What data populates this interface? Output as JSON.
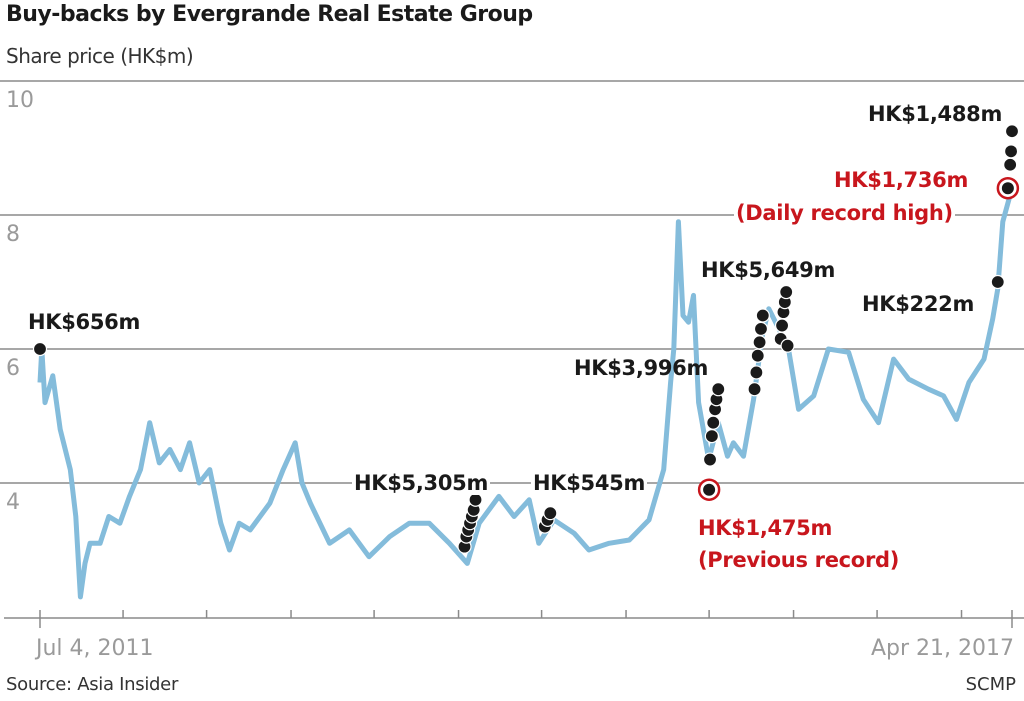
{
  "title": "Buy-backs by Evergrande Real Estate Group",
  "subtitle": "Share price (HK$m)",
  "source": "Source: Asia Insider",
  "credit": "SCMP",
  "colors": {
    "line": "#84bcdb",
    "dot": "#1a1a1a",
    "highlight": "#c8161d",
    "grid": "#8a8a8a",
    "tick_text": "#9a9a9a"
  },
  "chart_data": {
    "type": "line",
    "title": "Buy-backs by Evergrande Real Estate Group",
    "ylabel": "Share price (HK$m)",
    "xlabel": "",
    "ylim": [
      2,
      10
    ],
    "yticks": [
      4,
      6,
      8,
      10
    ],
    "xlim": [
      "2011-07-04",
      "2017-04-21"
    ],
    "x_tick_labels": [
      "Jul 4, 2011",
      "Apr 21, 2017"
    ],
    "x_ticks": [
      "2011-07-04",
      "2012-01-01",
      "2012-07-01",
      "2013-01-01",
      "2013-07-01",
      "2014-01-01",
      "2014-07-01",
      "2015-01-01",
      "2015-07-01",
      "2016-01-01",
      "2016-07-01",
      "2017-01-01",
      "2017-04-21"
    ],
    "grid": true,
    "series": [
      {
        "values": [
          [
            "2011-07-04",
            5.5
          ],
          [
            "2011-07-08",
            6.0
          ],
          [
            "2011-07-15",
            5.2
          ],
          [
            "2011-08-01",
            5.6
          ],
          [
            "2011-08-17",
            4.8
          ],
          [
            "2011-09-08",
            4.2
          ],
          [
            "2011-09-20",
            3.5
          ],
          [
            "2011-09-30",
            2.3
          ],
          [
            "2011-10-10",
            2.8
          ],
          [
            "2011-10-21",
            3.1
          ],
          [
            "2011-11-12",
            3.1
          ],
          [
            "2011-12-01",
            3.5
          ],
          [
            "2011-12-25",
            3.4
          ],
          [
            "2012-01-15",
            3.8
          ],
          [
            "2012-02-08",
            4.2
          ],
          [
            "2012-02-28",
            4.9
          ],
          [
            "2012-03-20",
            4.3
          ],
          [
            "2012-04-12",
            4.5
          ],
          [
            "2012-05-05",
            4.2
          ],
          [
            "2012-05-25",
            4.6
          ],
          [
            "2012-06-15",
            4.0
          ],
          [
            "2012-07-08",
            4.2
          ],
          [
            "2012-08-01",
            3.4
          ],
          [
            "2012-08-20",
            3.0
          ],
          [
            "2012-09-10",
            3.4
          ],
          [
            "2012-10-04",
            3.3
          ],
          [
            "2012-11-16",
            3.7
          ],
          [
            "2012-12-15",
            4.2
          ],
          [
            "2013-01-10",
            4.6
          ],
          [
            "2013-01-25",
            4.0
          ],
          [
            "2013-02-12",
            3.7
          ],
          [
            "2013-03-26",
            3.1
          ],
          [
            "2013-05-08",
            3.3
          ],
          [
            "2013-06-20",
            2.9
          ],
          [
            "2013-08-04",
            3.2
          ],
          [
            "2013-09-16",
            3.4
          ],
          [
            "2013-10-29",
            3.4
          ],
          [
            "2013-12-12",
            3.1
          ],
          [
            "2014-01-20",
            2.8
          ],
          [
            "2014-02-15",
            3.4
          ],
          [
            "2014-03-30",
            3.8
          ],
          [
            "2014-05-02",
            3.5
          ],
          [
            "2014-06-04",
            3.75
          ],
          [
            "2014-06-25",
            3.1
          ],
          [
            "2014-07-28",
            3.45
          ],
          [
            "2014-09-10",
            3.25
          ],
          [
            "2014-10-12",
            3.0
          ],
          [
            "2014-11-25",
            3.1
          ],
          [
            "2015-01-08",
            3.15
          ],
          [
            "2015-02-20",
            3.45
          ],
          [
            "2015-03-24",
            4.2
          ],
          [
            "2015-04-08",
            5.5
          ],
          [
            "2015-04-15",
            6.0
          ],
          [
            "2015-04-25",
            7.9
          ],
          [
            "2015-05-05",
            6.5
          ],
          [
            "2015-05-17",
            6.4
          ],
          [
            "2015-05-28",
            6.8
          ],
          [
            "2015-06-08",
            5.2
          ],
          [
            "2015-06-30",
            4.35
          ],
          [
            "2015-07-21",
            4.9
          ],
          [
            "2015-08-10",
            4.4
          ],
          [
            "2015-08-23",
            4.6
          ],
          [
            "2015-09-14",
            4.4
          ],
          [
            "2015-10-06",
            5.25
          ],
          [
            "2015-10-25",
            6.2
          ],
          [
            "2015-11-08",
            6.6
          ],
          [
            "2015-11-30",
            6.3
          ],
          [
            "2015-12-21",
            6.0
          ],
          [
            "2016-01-12",
            5.1
          ],
          [
            "2016-02-14",
            5.3
          ],
          [
            "2016-03-17",
            6.0
          ],
          [
            "2016-04-30",
            5.95
          ],
          [
            "2016-06-01",
            5.25
          ],
          [
            "2016-07-04",
            4.9
          ],
          [
            "2016-08-06",
            5.85
          ],
          [
            "2016-09-08",
            5.55
          ],
          [
            "2016-10-21",
            5.4
          ],
          [
            "2016-11-23",
            5.3
          ],
          [
            "2016-12-21",
            4.95
          ],
          [
            "2017-01-17",
            5.5
          ],
          [
            "2017-02-19",
            5.85
          ],
          [
            "2017-03-10",
            6.45
          ],
          [
            "2017-03-21",
            6.9
          ],
          [
            "2017-04-01",
            7.9
          ],
          [
            "2017-04-21",
            8.4
          ]
        ]
      }
    ],
    "buybacks": [
      [
        "2011-07-04",
        6.0
      ],
      [
        "2014-01-14",
        3.05
      ],
      [
        "2014-01-18",
        3.2
      ],
      [
        "2014-01-22",
        3.3
      ],
      [
        "2014-01-26",
        3.4
      ],
      [
        "2014-01-30",
        3.5
      ],
      [
        "2014-02-03",
        3.6
      ],
      [
        "2014-02-07",
        3.75
      ],
      [
        "2014-07-08",
        3.35
      ],
      [
        "2014-07-14",
        3.45
      ],
      [
        "2014-07-20",
        3.55
      ],
      [
        "2015-07-03",
        4.35
      ],
      [
        "2015-07-07",
        4.7
      ],
      [
        "2015-07-10",
        4.9
      ],
      [
        "2015-07-14",
        5.1
      ],
      [
        "2015-07-17",
        5.25
      ],
      [
        "2015-07-21",
        5.4
      ],
      [
        "2015-10-08",
        5.4
      ],
      [
        "2015-10-12",
        5.65
      ],
      [
        "2015-10-15",
        5.9
      ],
      [
        "2015-10-19",
        6.1
      ],
      [
        "2015-10-22",
        6.3
      ],
      [
        "2015-10-26",
        6.5
      ],
      [
        "2015-12-04",
        6.15
      ],
      [
        "2015-12-07",
        6.35
      ],
      [
        "2015-12-10",
        6.55
      ],
      [
        "2015-12-13",
        6.7
      ],
      [
        "2015-12-16",
        6.85
      ],
      [
        "2015-12-19",
        6.05
      ],
      [
        "2017-03-21",
        7.0
      ],
      [
        "2017-04-17",
        8.75
      ],
      [
        "2017-04-19",
        8.95
      ],
      [
        "2017-04-21",
        9.25
      ]
    ],
    "highlighted": [
      [
        "2015-07-01",
        3.9
      ],
      [
        "2017-04-12",
        8.4
      ]
    ],
    "annotations": {
      "a656": "HK$656m",
      "a5305": "HK$5,305m",
      "a545": "HK$545m",
      "a3996": "HK$3,996m",
      "a1475": "HK$1,475m",
      "a1475_note": "(Previous record)",
      "a5649": "HK$5,649m",
      "a222": "HK$222m",
      "a1736": "HK$1,736m",
      "a1736_note": "(Daily record high)",
      "a1488": "HK$1,488m"
    }
  }
}
